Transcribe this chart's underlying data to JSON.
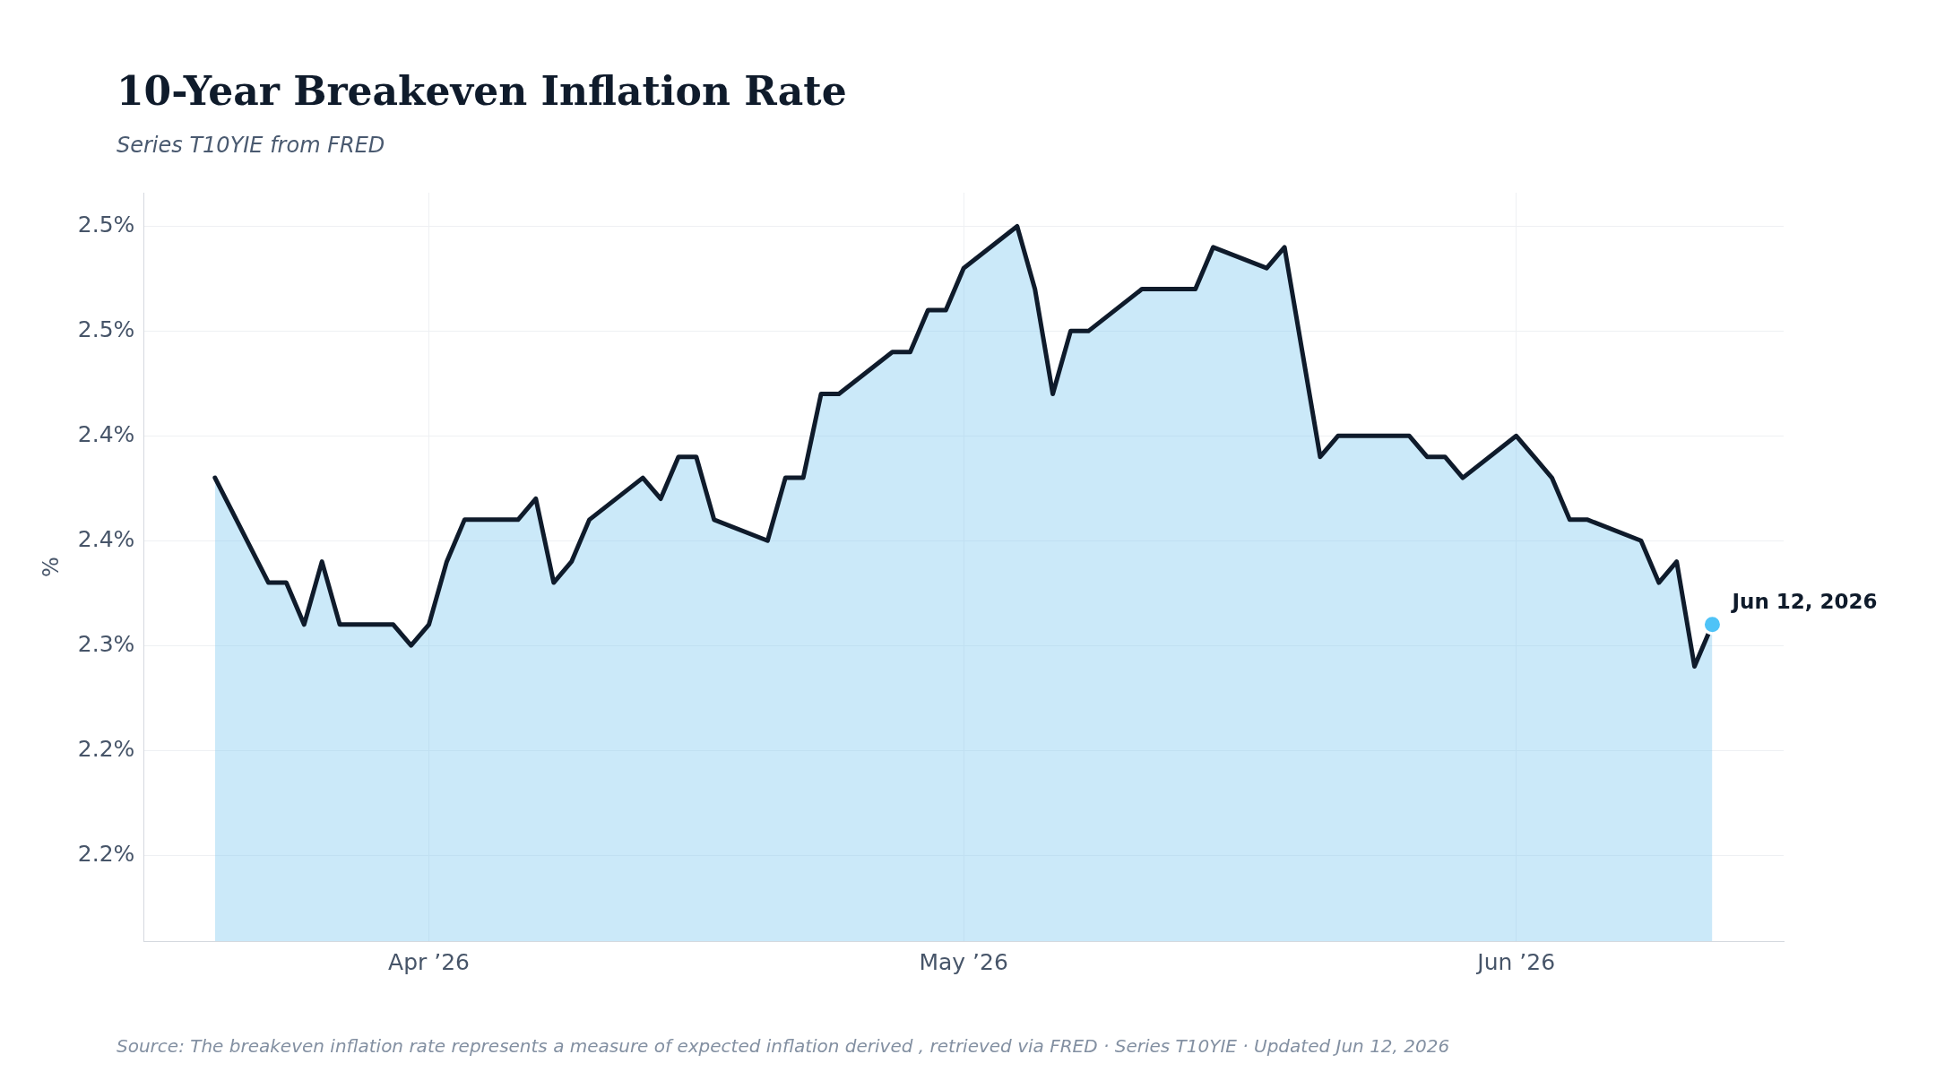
{
  "chart_data": {
    "type": "area",
    "title": "10-Year Breakeven Inflation Rate",
    "subtitle": "Series T10YIE from FRED",
    "ylabel": "%",
    "x": [
      "2026-03-20",
      "2026-03-23",
      "2026-03-24",
      "2026-03-25",
      "2026-03-26",
      "2026-03-27",
      "2026-03-30",
      "2026-03-31",
      "2026-04-01",
      "2026-04-02",
      "2026-04-03",
      "2026-04-06",
      "2026-04-07",
      "2026-04-08",
      "2026-04-09",
      "2026-04-10",
      "2026-04-13",
      "2026-04-14",
      "2026-04-15",
      "2026-04-16",
      "2026-04-17",
      "2026-04-20",
      "2026-04-21",
      "2026-04-22",
      "2026-04-23",
      "2026-04-24",
      "2026-04-27",
      "2026-04-28",
      "2026-04-29",
      "2026-04-30",
      "2026-05-01",
      "2026-05-04",
      "2026-05-05",
      "2026-05-06",
      "2026-05-07",
      "2026-05-08",
      "2026-05-11",
      "2026-05-12",
      "2026-05-13",
      "2026-05-14",
      "2026-05-15",
      "2026-05-18",
      "2026-05-19",
      "2026-05-20",
      "2026-05-21",
      "2026-05-22",
      "2026-05-26",
      "2026-05-27",
      "2026-05-28",
      "2026-05-29",
      "2026-06-01",
      "2026-06-02",
      "2026-06-03",
      "2026-06-04",
      "2026-06-05",
      "2026-06-08",
      "2026-06-09",
      "2026-06-10",
      "2026-06-11",
      "2026-06-12"
    ],
    "series": [
      {
        "color": "#0f1b2b",
        "values": [
          2.38,
          2.33,
          2.33,
          2.31,
          2.34,
          2.31,
          2.31,
          2.3,
          2.31,
          2.34,
          2.36,
          2.36,
          2.37,
          2.33,
          2.34,
          2.36,
          2.38,
          2.37,
          2.39,
          2.39,
          2.36,
          2.35,
          2.38,
          2.38,
          2.42,
          2.42,
          2.44,
          2.44,
          2.46,
          2.46,
          2.48,
          2.5,
          2.47,
          2.42,
          2.45,
          2.45,
          2.47,
          2.47,
          2.47,
          2.47,
          2.49,
          2.48,
          2.49,
          2.44,
          2.39,
          2.4,
          2.4,
          2.39,
          2.39,
          2.38,
          2.4,
          2.39,
          2.38,
          2.36,
          2.36,
          2.35,
          2.33,
          2.34,
          2.29,
          2.31
        ]
      }
    ],
    "xlim": [
      "2026-03-16",
      "2026-06-16"
    ],
    "xticks": [
      {
        "value": "2026-04-01",
        "label": "Apr ’26"
      },
      {
        "value": "2026-05-01",
        "label": "May ’26"
      },
      {
        "value": "2026-06-01",
        "label": "Jun ’26"
      }
    ],
    "ylim": [
      2.159,
      2.516
    ],
    "yticks": [
      {
        "value": 2.2,
        "label": "2.2%"
      },
      {
        "value": 2.25,
        "label": "2.2%"
      },
      {
        "value": 2.3,
        "label": "2.3%"
      },
      {
        "value": 2.35,
        "label": "2.4%"
      },
      {
        "value": 2.4,
        "label": "2.4%"
      },
      {
        "value": 2.45,
        "label": "2.5%"
      },
      {
        "value": 2.5,
        "label": "2.5%"
      }
    ],
    "grid": true,
    "legend": false,
    "marker": "none",
    "annotations": [
      {
        "text": "Jun 12, 2026",
        "x": "2026-06-12",
        "y": 2.31
      },
      "Source: The breakeven inflation rate represents a measure of expected inflation derived , retrieved via FRED · Series T10YIE · Updated Jun 12, 2026"
    ]
  }
}
